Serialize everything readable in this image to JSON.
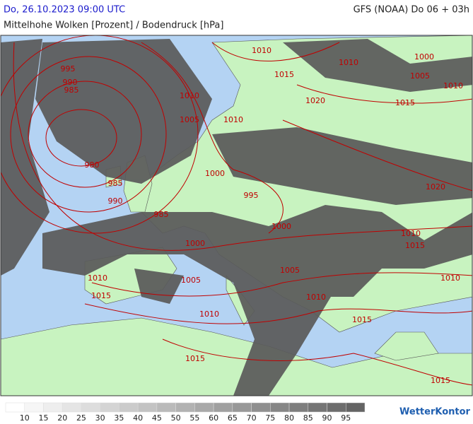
{
  "header": {
    "date": "Do, 26.10.2023 09:00 UTC",
    "model": "GFS (NOAA) Do 06 + 03h",
    "subtitle": "Mittelhohe Wolken [Prozent] / Bodendruck [hPa]"
  },
  "isobar_labels": [
    1010,
    1010,
    1000,
    995,
    990,
    985,
    1015,
    1005,
    1010,
    1010,
    1020,
    1015,
    1005,
    1010,
    980,
    1000,
    985,
    1020,
    995,
    990,
    985,
    1000,
    1010,
    1000,
    1015,
    1005,
    1010,
    1005,
    1010,
    1015,
    1010,
    1010,
    1015,
    1015,
    1015
  ],
  "legend": {
    "labels": [
      10,
      15,
      20,
      25,
      30,
      35,
      40,
      45,
      50,
      55,
      60,
      65,
      70,
      75,
      80,
      85,
      90,
      95
    ]
  },
  "logo": "WetterKontor"
}
